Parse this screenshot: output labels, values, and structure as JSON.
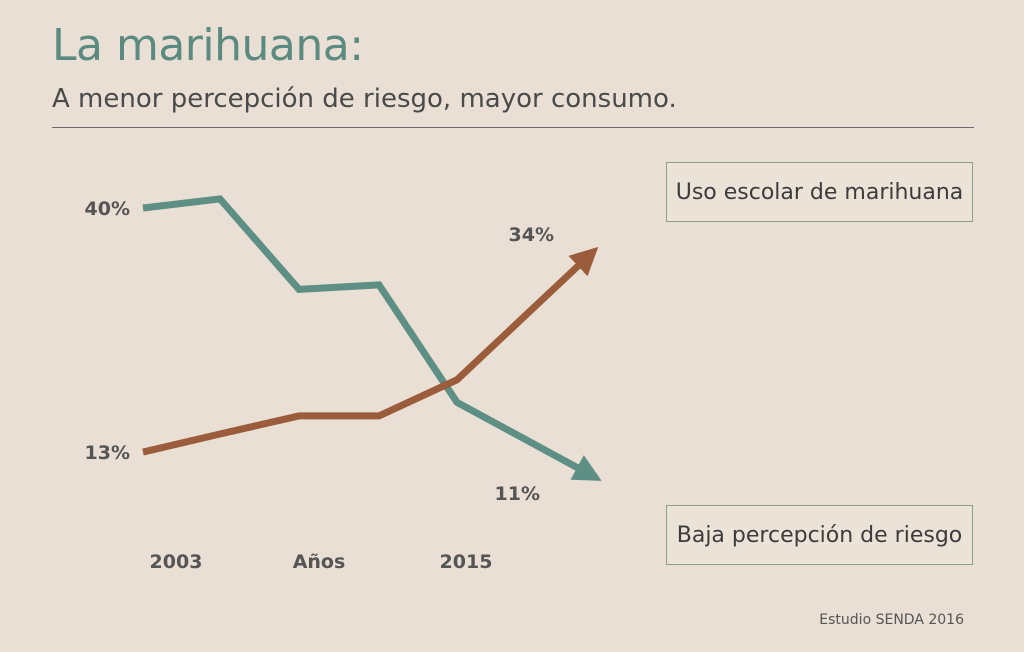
{
  "title": "La marihuana:",
  "subtitle": "A menor percepción de riesgo, mayor consumo.",
  "source": "Estudio SENDA 2016",
  "colors": {
    "riesgo": "#5e8f84",
    "uso": "#9a5c3a",
    "title": "#5a8a80",
    "background": "#e9dfd4"
  },
  "chart_data": {
    "type": "line",
    "x_tick_labels": [
      "2003",
      "Años",
      "2015"
    ],
    "series": [
      {
        "name": "Baja percepción de riesgo",
        "color": "#5e8f84",
        "values": [
          40,
          41,
          31,
          31.5,
          18.5,
          11
        ],
        "data_labels": {
          "start": "40%",
          "end": "11%"
        }
      },
      {
        "name": "Uso escolar de marihuana",
        "color": "#9a5c3a",
        "values": [
          13,
          15,
          17,
          17,
          21,
          34
        ],
        "data_labels": {
          "start": "13%",
          "end": "34%"
        }
      }
    ]
  }
}
